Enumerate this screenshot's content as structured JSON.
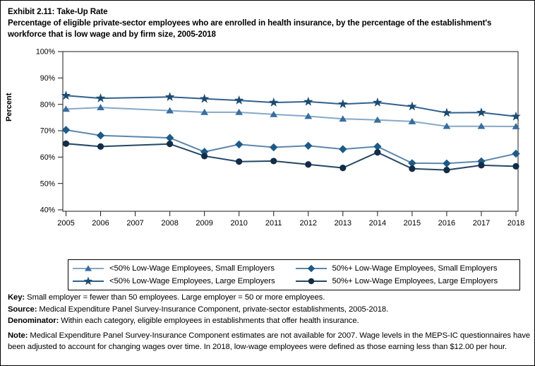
{
  "title": "Exhibit 2.11: Take-Up Rate",
  "subtitle": "Percentage of eligible private-sector employees who are enrolled in health insurance, by the percentage of the establishment's workforce that is low wage and by firm size, 2005-2018",
  "chart_data": {
    "type": "line",
    "x": [
      2005,
      2006,
      2007,
      2008,
      2009,
      2010,
      2011,
      2012,
      2013,
      2014,
      2015,
      2016,
      2017,
      2018
    ],
    "missing_years": [
      2007
    ],
    "ylabel": "Percent",
    "ylim": [
      40,
      100
    ],
    "ytick_step": 10,
    "ytick_labels": [
      "40%",
      "50%",
      "60%",
      "70%",
      "80%",
      "90%",
      "100%"
    ],
    "grid": false,
    "legend_position": "bottom",
    "series": [
      {
        "name": "<50% Low-Wage Employees, Small Employers",
        "marker": "triangle",
        "line_color": "#87a8c8",
        "marker_color": "#3a6d9e",
        "values": [
          78.2,
          78.8,
          null,
          77.6,
          77.0,
          77.0,
          76.2,
          75.5,
          74.5,
          74.1,
          73.5,
          71.7,
          71.7,
          71.6
        ]
      },
      {
        "name": "<50% Low-Wage Employees, Large Employers",
        "marker": "star",
        "line_color": "#31618f",
        "marker_color": "#1c4a70",
        "values": [
          83.3,
          82.3,
          null,
          82.8,
          82.1,
          81.5,
          80.7,
          81.0,
          80.1,
          80.7,
          79.2,
          76.8,
          76.9,
          75.4
        ]
      },
      {
        "name": "50%+ Low-Wage Employees, Small Employers",
        "marker": "diamond",
        "line_color": "#5c87ad",
        "marker_color": "#1e5a88",
        "values": [
          70.3,
          68.2,
          null,
          67.3,
          62.0,
          64.8,
          63.7,
          64.3,
          63.0,
          64.0,
          57.7,
          57.6,
          58.4,
          61.3
        ]
      },
      {
        "name": "50%+ Low-Wage Employees, Large Employers",
        "marker": "circle",
        "line_color": "#254766",
        "marker_color": "#132c47",
        "values": [
          65.1,
          64.0,
          null,
          65.0,
          60.4,
          58.3,
          58.5,
          57.2,
          55.9,
          61.8,
          55.6,
          55.1,
          56.9,
          56.5
        ]
      }
    ]
  },
  "footnotes": {
    "key_label": "Key:",
    "key_text": " Small employer = fewer than 50 employees. Large employer = 50 or more employees.",
    "source_label": "Source:",
    "source_text": " Medical Expenditure Panel Survey-Insurance Component, private-sector establishments, 2005-2018.",
    "denominator_label": "Denominator:",
    "denominator_text": " Within each category, eligible employees in establishments that offer health insurance.",
    "note_label": "Note:",
    "note_text": " Medical Expenditure Panel Survey-Insurance Component estimates are not available for 2007. Wage levels in the MEPS-IC questionnaires have been adjusted to account for changing wages over time. In 2018, low-wage employees were defined as those earning less than $12.00 per hour."
  }
}
